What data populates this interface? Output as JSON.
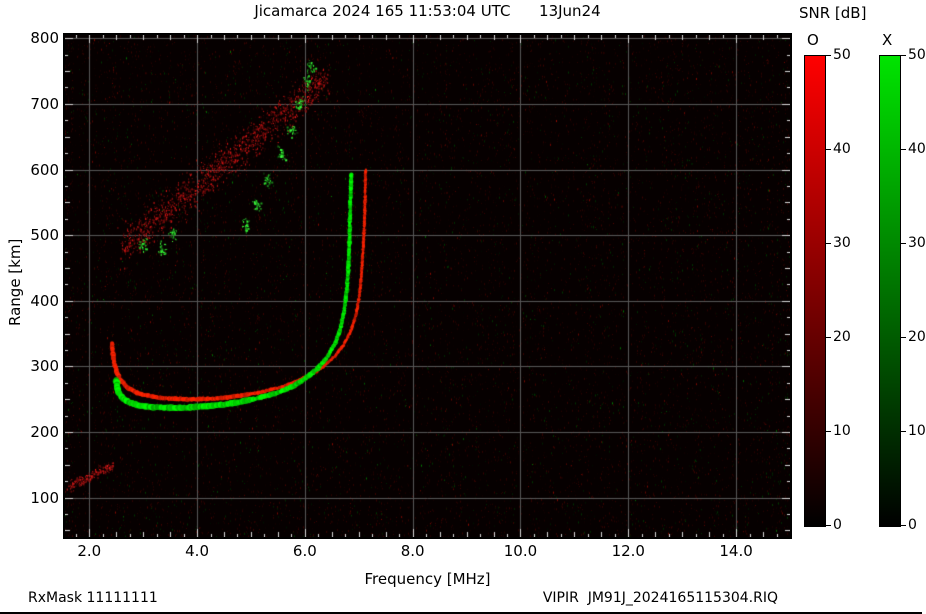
{
  "title": "Jicamarca 2024 165 11:53:04 UTC      13Jun24",
  "footer": {
    "left": "RxMask 11111111",
    "right": "VIPIR  JM91J_2024165115304.RIQ"
  },
  "colorbar": {
    "title": "SNR [dB]",
    "min": 0,
    "max": 50,
    "bars": [
      {
        "label": "O",
        "top_color": "#ff0000",
        "bottom_color": "#000000",
        "ticks": [
          0,
          10,
          20,
          30,
          40,
          50
        ]
      },
      {
        "label": "X",
        "top_color": "#00e400",
        "bottom_color": "#000000",
        "ticks": [
          0,
          10,
          20,
          30,
          40,
          50
        ]
      }
    ]
  },
  "chart_data": {
    "type": "heatmap",
    "description": "VIPIR ionogram: echo SNR versus sounding frequency and virtual range. Red = O-mode echoes, green = X-mode echoes, over dark receiver-noise background.",
    "title": "Jicamarca 2024 165 11:53:04 UTC 13Jun24",
    "xlabel": "Frequency [MHz]",
    "ylabel": "Range [km]",
    "xlim": [
      1.55,
      15.0
    ],
    "ylim": [
      40,
      805
    ],
    "xticks": [
      2,
      4,
      6,
      8,
      10,
      12,
      14
    ],
    "xtick_labels": [
      "2.0",
      "4.0",
      "6.0",
      "8.0",
      "10.0",
      "12.0",
      "14.0"
    ],
    "yticks": [
      100,
      200,
      300,
      400,
      500,
      600,
      700,
      800
    ],
    "grid": true,
    "grid_color": "#585858",
    "tick_color": "#d8d8d8",
    "background_color": "#060000",
    "noise": {
      "density": 24,
      "red_fraction": 0.84,
      "green_fraction": 0.16
    },
    "series": [
      {
        "name": "O-mode trace",
        "mode": "trace",
        "color": "#ff2200",
        "width": 1.7,
        "points": [
          [
            2.42,
            335
          ],
          [
            2.45,
            312
          ],
          [
            2.5,
            293
          ],
          [
            2.58,
            279
          ],
          [
            2.7,
            268
          ],
          [
            2.9,
            259
          ],
          [
            3.15,
            254
          ],
          [
            3.45,
            251
          ],
          [
            3.8,
            250
          ],
          [
            4.15,
            250
          ],
          [
            4.5,
            252
          ],
          [
            4.85,
            256
          ],
          [
            5.2,
            261
          ],
          [
            5.55,
            268
          ],
          [
            5.85,
            277
          ],
          [
            6.1,
            287
          ],
          [
            6.35,
            300
          ],
          [
            6.55,
            315
          ],
          [
            6.72,
            333
          ],
          [
            6.86,
            355
          ],
          [
            6.96,
            382
          ],
          [
            7.02,
            415
          ],
          [
            7.06,
            452
          ],
          [
            7.09,
            492
          ],
          [
            7.11,
            532
          ],
          [
            7.12,
            568
          ],
          [
            7.13,
            600
          ]
        ]
      },
      {
        "name": "X-mode trace",
        "mode": "trace",
        "color": "#00e800",
        "width": 2.3,
        "points": [
          [
            2.5,
            280
          ],
          [
            2.53,
            263
          ],
          [
            2.6,
            253
          ],
          [
            2.72,
            246
          ],
          [
            2.9,
            241
          ],
          [
            3.15,
            238
          ],
          [
            3.45,
            237
          ],
          [
            3.8,
            237
          ],
          [
            4.15,
            239
          ],
          [
            4.5,
            242
          ],
          [
            4.8,
            246
          ],
          [
            5.1,
            251
          ],
          [
            5.38,
            257
          ],
          [
            5.62,
            264
          ],
          [
            5.85,
            273
          ],
          [
            6.05,
            284
          ],
          [
            6.25,
            298
          ],
          [
            6.42,
            315
          ],
          [
            6.56,
            335
          ],
          [
            6.66,
            358
          ],
          [
            6.73,
            385
          ],
          [
            6.78,
            418
          ],
          [
            6.81,
            455
          ],
          [
            6.83,
            495
          ],
          [
            6.84,
            535
          ],
          [
            6.85,
            570
          ],
          [
            6.86,
            593
          ]
        ]
      },
      {
        "name": "spread-F scatter red",
        "mode": "band",
        "color": "#a01010",
        "from": [
          2.6,
          480
        ],
        "to": [
          6.4,
          740
        ],
        "sigma_mhz": 0.06,
        "sigma_km": 27,
        "count": 1400
      },
      {
        "name": "spread-F scatter green",
        "mode": "clusters",
        "color": "#28c828",
        "sigma_mhz": 0.07,
        "sigma_km": 10,
        "count_per_cluster": 28,
        "centers": [
          [
            3.0,
            485
          ],
          [
            3.35,
            478
          ],
          [
            3.55,
            502
          ],
          [
            4.9,
            515
          ],
          [
            5.1,
            545
          ],
          [
            5.3,
            585
          ],
          [
            5.55,
            625
          ],
          [
            5.75,
            660
          ],
          [
            5.9,
            700
          ],
          [
            6.05,
            735
          ],
          [
            6.1,
            758
          ]
        ]
      },
      {
        "name": "E-region streak",
        "mode": "band",
        "color": "#b01414",
        "from": [
          1.62,
          118
        ],
        "to": [
          2.45,
          150
        ],
        "sigma_mhz": 0.03,
        "sigma_km": 7,
        "count": 220
      }
    ]
  }
}
